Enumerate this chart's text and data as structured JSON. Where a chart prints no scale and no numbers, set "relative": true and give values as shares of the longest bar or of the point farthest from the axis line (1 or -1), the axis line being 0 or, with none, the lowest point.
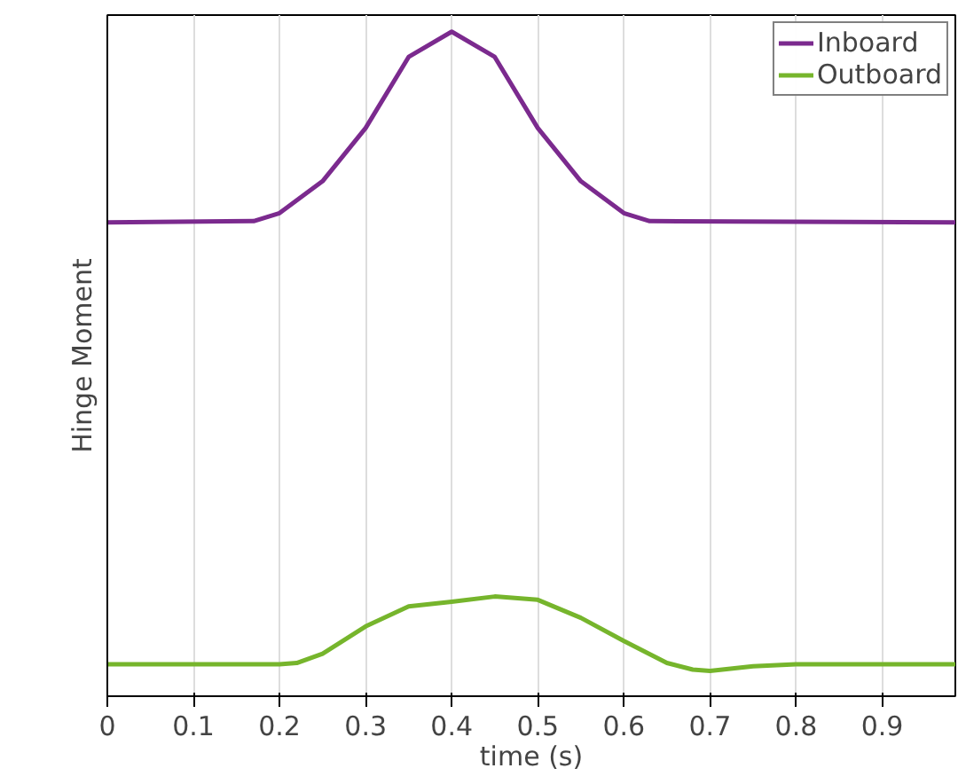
{
  "chart_data": {
    "type": "line",
    "xlabel": "time (s)",
    "ylabel": "Hinge Moment",
    "relative": true,
    "xlim": [
      0,
      0.985
    ],
    "xticks": [
      0,
      0.1,
      0.2,
      0.3,
      0.4,
      0.5,
      0.6,
      0.7,
      0.8,
      0.9
    ],
    "grid": "x",
    "legend": "top right",
    "line_style": "solid",
    "series": [
      {
        "name": "Inboard",
        "color": "#7b2a8e",
        "x": [
          0,
          0.17,
          0.2,
          0.25,
          0.3,
          0.35,
          0.4,
          0.45,
          0.5,
          0.55,
          0.6,
          0.63,
          0.985
        ],
        "values": [
          0.713,
          0.715,
          0.727,
          0.775,
          0.855,
          0.962,
          1.0,
          0.962,
          0.855,
          0.775,
          0.727,
          0.715,
          0.713
        ]
      },
      {
        "name": "Outboard",
        "color": "#76b52c",
        "x": [
          0,
          0.2,
          0.22,
          0.25,
          0.3,
          0.35,
          0.4,
          0.45,
          0.5,
          0.55,
          0.6,
          0.65,
          0.68,
          0.7,
          0.75,
          0.8,
          0.985
        ],
        "values": [
          0.048,
          0.048,
          0.05,
          0.064,
          0.105,
          0.135,
          0.142,
          0.15,
          0.145,
          0.118,
          0.083,
          0.05,
          0.04,
          0.038,
          0.045,
          0.048,
          0.048
        ]
      }
    ]
  }
}
